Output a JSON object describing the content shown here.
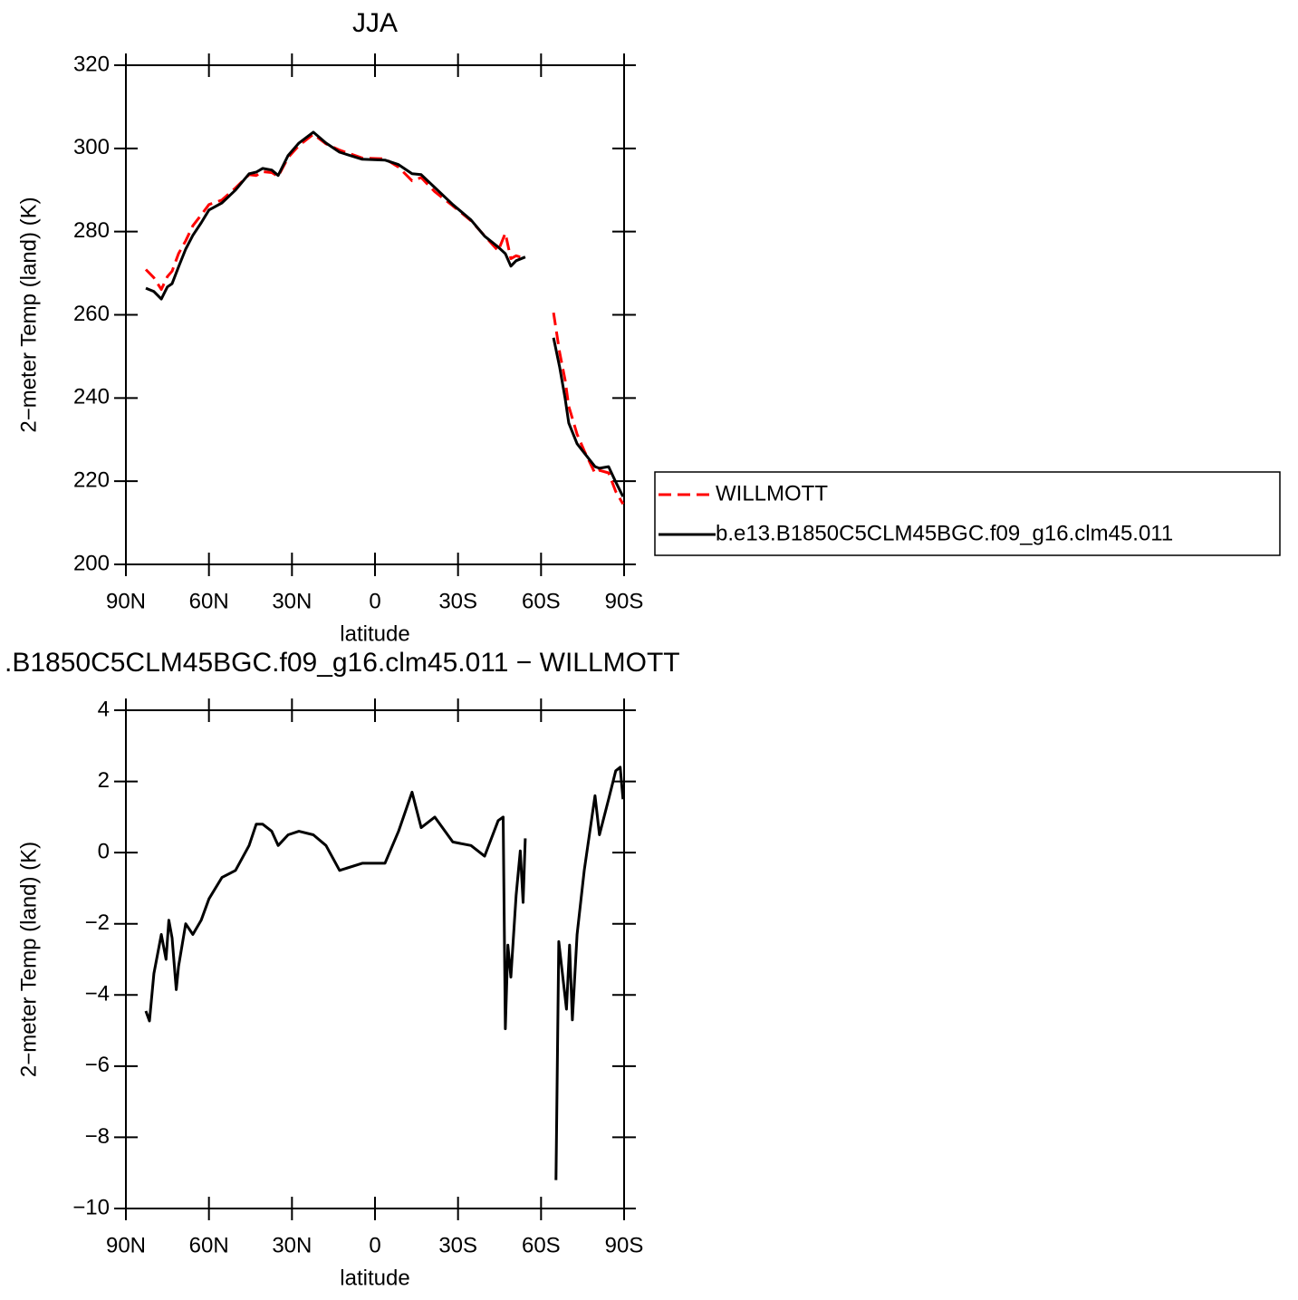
{
  "chart_data": [
    {
      "type": "line",
      "title": "JJA",
      "xlabel": "latitude",
      "ylabel": "2−meter Temp (land) (K)",
      "x": [
        82.8,
        79.9,
        77.2,
        75,
        73.3,
        71,
        68.4,
        65.8,
        62.8,
        60,
        55.3,
        50.4,
        45.5,
        42.9,
        40.6,
        37.3,
        35,
        31.4,
        27.5,
        22.3,
        17.7,
        12.8,
        4.6,
        -3.6,
        -8.5,
        -13.4,
        -16.7,
        -21.6,
        -28.1,
        -34.7,
        -39.6,
        -44.5,
        -47.1,
        -49.1,
        -51,
        -54.3,
        -60,
        -64.5,
        -66.7,
        -68.7,
        -70,
        -73,
        -75.6,
        -79.5,
        -81.1,
        -84.4,
        -87,
        -89.6
      ],
      "series": [
        {
          "name": "WILLMOTT",
          "color": "#ff0000",
          "linestyle": "dashed",
          "values": [
            270.9,
            268.9,
            266.1,
            269.2,
            270.5,
            274.7,
            277.8,
            281.4,
            284,
            286.5,
            287.6,
            290.5,
            293.7,
            293.5,
            294.4,
            294.2,
            293.3,
            297.8,
            300.7,
            303.4,
            301.1,
            299.6,
            297.7,
            297.5,
            295.5,
            292.2,
            293,
            289.6,
            286.2,
            282.6,
            279,
            275.4,
            279.6,
            273.5,
            274.2,
            273.5,
            null,
            260.5,
            251,
            244.3,
            238,
            231.3,
            227.3,
            221.9,
            222.6,
            222,
            217.5,
            214.5
          ]
        },
        {
          "name": "b.e13.B1850C5CLM45BGC.f09_g16.clm45.011",
          "color": "#000000",
          "linestyle": "solid",
          "values": [
            266.4,
            265.6,
            263.8,
            266.7,
            267.5,
            271.5,
            275.8,
            279.1,
            282.1,
            285.2,
            286.9,
            290,
            293.9,
            294.3,
            295.2,
            294.8,
            293.5,
            298.3,
            301.3,
            303.9,
            301.3,
            299.1,
            297.4,
            297.2,
            296.1,
            293.9,
            293.7,
            290.6,
            286.5,
            282.8,
            278.9,
            276.3,
            274.7,
            271.7,
            273,
            273.9,
            null,
            254.5,
            247.5,
            239.9,
            234,
            229,
            226.8,
            223.5,
            223.1,
            223.5,
            219.8,
            216.3
          ]
        }
      ],
      "xlim": [
        90,
        -90
      ],
      "xticks": [
        {
          "value": 90,
          "label": "90N"
        },
        {
          "value": 60,
          "label": "60N"
        },
        {
          "value": 30,
          "label": "30N"
        },
        0,
        {
          "value": -30,
          "label": "30S"
        },
        {
          "value": -60,
          "label": "60S"
        },
        {
          "value": -90,
          "label": "90S"
        }
      ],
      "ylim": [
        200,
        320
      ],
      "yticks": [
        200,
        220,
        240,
        260,
        280,
        300,
        320
      ],
      "legend": "outside-right"
    },
    {
      "type": "line",
      "title": ".B1850C5CLM45BGC.f09_g16.clm45.011 − WILLMOTT",
      "xlabel": "latitude",
      "ylabel": "2−meter Temp (land) (K)",
      "x": [
        82.8,
        81.5,
        79.9,
        77.2,
        75.5,
        74.5,
        73.3,
        71.8,
        71,
        68.4,
        65.8,
        62.8,
        60,
        55.3,
        50.4,
        45.5,
        42.9,
        40.6,
        37.3,
        35,
        31.4,
        27.5,
        22.3,
        17.7,
        12.8,
        4.6,
        -3.6,
        -8.5,
        -13.4,
        -16.7,
        -21.6,
        -28.1,
        -34.7,
        -39.6,
        -44.5,
        -46.3,
        -47.1,
        -48,
        -49.1,
        -51,
        -52.5,
        -53.5,
        -54.3,
        -60,
        -65.4,
        -66.4,
        -69.2,
        -70.3,
        -71.3,
        -73,
        -75.6,
        -79.5,
        -81.1,
        -84.4,
        -87,
        -88.6,
        -89.6
      ],
      "color": "#000000",
      "values": [
        -4.45,
        -4.73,
        -3.4,
        -2.3,
        -3.0,
        -1.9,
        -2.4,
        -3.85,
        -3.2,
        -2.0,
        -2.3,
        -1.9,
        -1.3,
        -0.7,
        -0.5,
        0.2,
        0.8,
        0.8,
        0.6,
        0.2,
        0.5,
        0.6,
        0.5,
        0.2,
        -0.5,
        -0.3,
        -0.3,
        0.6,
        1.7,
        0.7,
        1.0,
        0.3,
        0.2,
        -0.1,
        0.9,
        1.0,
        -4.95,
        -2.6,
        -3.5,
        -1.2,
        0.05,
        -1.4,
        0.4,
        null,
        -9.2,
        -2.5,
        -4.4,
        -2.6,
        -4.7,
        -2.3,
        -0.5,
        1.6,
        0.5,
        1.5,
        2.3,
        2.4,
        1.5
      ],
      "xlim": [
        90,
        -90
      ],
      "xticks": [
        {
          "value": 90,
          "label": "90N"
        },
        {
          "value": 60,
          "label": "60N"
        },
        {
          "value": 30,
          "label": "30N"
        },
        0,
        {
          "value": -30,
          "label": "30S"
        },
        {
          "value": -60,
          "label": "60S"
        },
        {
          "value": -90,
          "label": "90S"
        }
      ],
      "ylim": [
        -10,
        4
      ],
      "yticks": [
        {
          "value": -10,
          "label": "−10"
        },
        {
          "value": -8,
          "label": "−8"
        },
        {
          "value": -6,
          "label": "−6"
        },
        {
          "value": -4,
          "label": "−4"
        },
        {
          "value": -2,
          "label": "−2"
        },
        0,
        2,
        4
      ]
    }
  ]
}
